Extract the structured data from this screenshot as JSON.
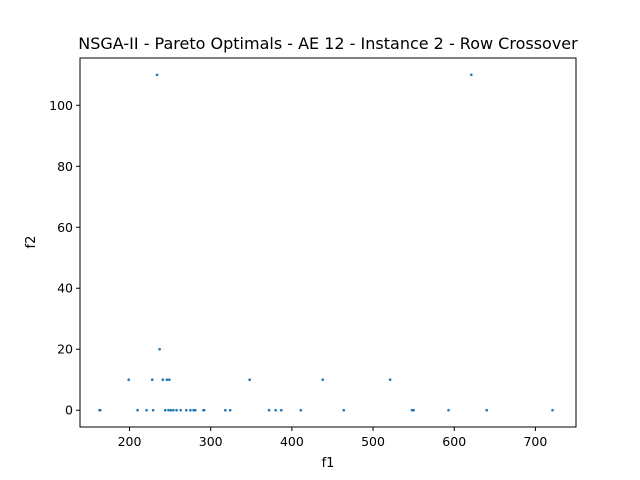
{
  "chart_data": {
    "type": "scatter",
    "title": "NSGA-II - Pareto Optimals - AE 12 - Instance 2 - Row Crossover",
    "xlabel": "f1",
    "ylabel": "f2",
    "xlim": [
      139,
      750
    ],
    "ylim": [
      -5.5,
      115.5
    ],
    "xticks": [
      200,
      300,
      400,
      500,
      600,
      700
    ],
    "yticks": [
      0,
      20,
      40,
      60,
      80,
      100
    ],
    "grid": false,
    "legend": "none",
    "point_color": "#1f77b4",
    "series": [
      {
        "points": [
          [
            163,
            0
          ],
          [
            164,
            0
          ],
          [
            199,
            10
          ],
          [
            210,
            0
          ],
          [
            221,
            0
          ],
          [
            228,
            10
          ],
          [
            229,
            0
          ],
          [
            234,
            110
          ],
          [
            237,
            20
          ],
          [
            241,
            10
          ],
          [
            244,
            0
          ],
          [
            246,
            10
          ],
          [
            248,
            0
          ],
          [
            249,
            10
          ],
          [
            251,
            0
          ],
          [
            254,
            0
          ],
          [
            258,
            0
          ],
          [
            263,
            0
          ],
          [
            270,
            0
          ],
          [
            275,
            0
          ],
          [
            279,
            0
          ],
          [
            281,
            0
          ],
          [
            291,
            0
          ],
          [
            292,
            0
          ],
          [
            318,
            0
          ],
          [
            324,
            0
          ],
          [
            348,
            10
          ],
          [
            372,
            0
          ],
          [
            380,
            0
          ],
          [
            387,
            0
          ],
          [
            411,
            0
          ],
          [
            438,
            10
          ],
          [
            464,
            0
          ],
          [
            521,
            10
          ],
          [
            548,
            0
          ],
          [
            550,
            0
          ],
          [
            593,
            0
          ],
          [
            621,
            110
          ],
          [
            640,
            0
          ],
          [
            721,
            0
          ]
        ]
      }
    ]
  }
}
